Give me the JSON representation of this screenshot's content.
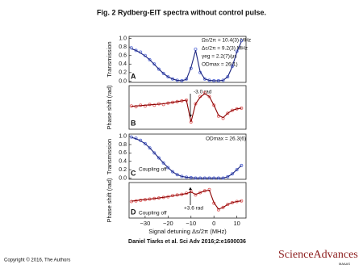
{
  "title": "Fig. 2 Rydberg-EIT spectra without control pulse.",
  "chart_data": [
    {
      "type": "line",
      "label": "A",
      "ylabel": "Transmission",
      "annotations": [
        "Ωc/2π = 10.4(3) MHz",
        "Δc/2π = 9.2(3) MHz",
        "γeg = 2.2(7)/μs",
        "ODmax = 26(1)"
      ],
      "x": [
        -36,
        -34,
        -32,
        -30,
        -28,
        -26,
        -24,
        -22,
        -20,
        -18,
        -16,
        -14,
        -12,
        -10,
        -8,
        -6,
        -4,
        -2,
        0,
        2,
        4,
        6,
        8,
        10,
        12
      ],
      "xlim": [
        -37,
        14
      ],
      "ylim": [
        -0.03,
        1.05
      ],
      "yticks": [
        {
          "value": 0,
          "label": "0.0"
        },
        0.2,
        0.4,
        0.6,
        0.8,
        {
          "value": 1,
          "label": "1.0"
        }
      ],
      "series": [
        {
          "mode": "markers",
          "color": "#5b6fd8",
          "values": [
            0.78,
            0.72,
            0.68,
            0.6,
            0.5,
            0.4,
            0.28,
            0.18,
            0.1,
            0.05,
            0.02,
            0.01,
            0.05,
            0.3,
            0.75,
            0.2,
            0.05,
            0.02,
            0.01,
            0.01,
            0.02,
            0.1,
            0.35,
            0.7,
            0.95
          ]
        },
        {
          "mode": "line",
          "color": "#1a237e",
          "values": [
            0.76,
            0.72,
            0.66,
            0.59,
            0.5,
            0.39,
            0.28,
            0.18,
            0.1,
            0.05,
            0.02,
            0.01,
            0.04,
            0.32,
            0.72,
            0.22,
            0.05,
            0.02,
            0.01,
            0.01,
            0.02,
            0.1,
            0.34,
            0.68,
            0.93
          ]
        }
      ]
    },
    {
      "type": "line",
      "label": "B",
      "ylabel": "Phase shift (rad)",
      "annotations": [
        "-3.0 rad"
      ],
      "x": [
        -36,
        -34,
        -32,
        -30,
        -28,
        -26,
        -24,
        -22,
        -20,
        -18,
        -16,
        -14,
        -12,
        -10,
        -8,
        -6,
        -4,
        -2,
        0,
        2,
        4,
        6,
        8,
        10,
        12
      ],
      "xlim": [
        -37,
        14
      ],
      "ylim": [
        -3,
        3
      ],
      "series": [
        {
          "mode": "markers",
          "color": "#e06060",
          "values": [
            0.2,
            0.1,
            0.3,
            0.2,
            0.4,
            0.3,
            0.5,
            0.4,
            0.6,
            0.7,
            0.8,
            0.9,
            1.0,
            -2.0,
            0.5,
            1.5,
            2.0,
            1.5,
            0.3,
            -1.2,
            -1.5,
            -0.8,
            -0.4,
            -0.2,
            -0.1
          ]
        },
        {
          "mode": "line",
          "color": "#8b0000",
          "values": [
            0.15,
            0.2,
            0.25,
            0.3,
            0.35,
            0.4,
            0.45,
            0.5,
            0.6,
            0.7,
            0.8,
            0.9,
            1.0,
            -2.0,
            0.5,
            1.4,
            1.9,
            1.5,
            0.3,
            -1.1,
            -1.4,
            -0.8,
            -0.4,
            -0.2,
            -0.1
          ]
        }
      ]
    },
    {
      "type": "line",
      "label": "C",
      "ylabel": "Transmission",
      "annotations": [
        "Coupling off",
        "ODmax = 26.3(6)"
      ],
      "x": [
        -36,
        -34,
        -32,
        -30,
        -28,
        -26,
        -24,
        -22,
        -20,
        -18,
        -16,
        -14,
        -12,
        -10,
        -8,
        -6,
        -4,
        -2,
        0,
        2,
        4,
        6,
        8,
        10,
        12
      ],
      "xlim": [
        -37,
        14
      ],
      "ylim": [
        -0.03,
        1.05
      ],
      "yticks": [
        {
          "value": 0,
          "label": "0.0"
        },
        0.2,
        0.4,
        0.6,
        0.8,
        {
          "value": 1,
          "label": "1.0"
        }
      ],
      "series": [
        {
          "mode": "markers",
          "color": "#5b6fd8",
          "values": [
            0.98,
            0.95,
            0.9,
            0.82,
            0.72,
            0.6,
            0.48,
            0.36,
            0.25,
            0.15,
            0.08,
            0.04,
            0.02,
            0.01,
            0,
            0,
            0,
            0,
            0,
            0,
            0,
            0.03,
            0.1,
            0.2,
            0.3
          ]
        },
        {
          "mode": "line",
          "color": "#1a237e",
          "values": [
            0.97,
            0.94,
            0.89,
            0.82,
            0.72,
            0.6,
            0.48,
            0.36,
            0.25,
            0.15,
            0.08,
            0.04,
            0.02,
            0.01,
            0,
            0,
            0,
            0,
            0,
            0,
            0,
            0.03,
            0.1,
            0.2,
            0.3
          ]
        }
      ]
    },
    {
      "type": "line",
      "label": "D",
      "ylabel": "Phase shift (rad)",
      "annotations": [
        "Coupling off",
        "+3.6 rad"
      ],
      "xlabel": "Signal detuning Δs/2π (MHz)",
      "x": [
        -36,
        -34,
        -32,
        -30,
        -28,
        -26,
        -24,
        -22,
        -20,
        -18,
        -16,
        -14,
        -12,
        -10,
        -8,
        -6,
        -4,
        -2,
        0,
        2,
        4,
        6,
        8,
        10,
        12
      ],
      "xlim": [
        -37,
        14
      ],
      "ylim": [
        -3,
        3
      ],
      "xticks": [
        {
          "value": -30,
          "label": "−30"
        },
        {
          "value": -20,
          "label": "−20"
        },
        {
          "value": -10,
          "label": "−10"
        },
        0,
        10
      ],
      "series": [
        {
          "mode": "markers",
          "color": "#e06060",
          "values": [
            -0.2,
            -0.1,
            0,
            0.1,
            0.2,
            0.3,
            0.4,
            0.5,
            0.6,
            0.8,
            0.9,
            1.0,
            1.2,
            1.5,
            0.9,
            1.3,
            1.6,
            1.8,
            -0.5,
            -1.6,
            -1.2,
            -0.7,
            -0.4,
            -0.2,
            -0.1
          ]
        },
        {
          "mode": "line",
          "color": "#8b0000",
          "values": [
            -0.15,
            -0.05,
            0.05,
            0.12,
            0.2,
            0.3,
            0.4,
            0.5,
            0.62,
            0.75,
            0.88,
            1.0,
            1.15,
            1.4,
            1.0,
            1.3,
            1.6,
            1.7,
            -0.4,
            -1.5,
            -1.2,
            -0.7,
            -0.4,
            -0.2,
            -0.1
          ]
        }
      ]
    }
  ],
  "citation": "Daniel Tiarks et al. Sci Adv 2016;2:e1600036",
  "copyright": "Copyright © 2016, The Authors",
  "logo": {
    "name": "ScienceAdvances",
    "publisher": "MAAAS"
  }
}
